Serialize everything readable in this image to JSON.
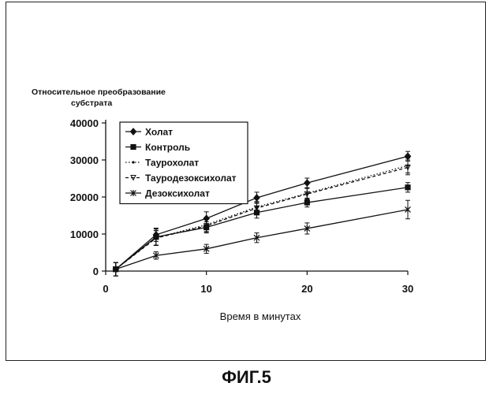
{
  "figure": {
    "caption": "ФИГ.5"
  },
  "chart_data": {
    "type": "line",
    "title": "",
    "ylabel_lines": [
      "Относительное преобразование",
      "субстрата"
    ],
    "xlabel": "Время в минутах",
    "xlim": [
      0,
      30
    ],
    "ylim": [
      0,
      40000
    ],
    "xticks": [
      0,
      10,
      20,
      30
    ],
    "yticks": [
      0,
      10000,
      20000,
      30000,
      40000
    ],
    "ytick_labels": [
      "0",
      "10000",
      "20000",
      "30000",
      "40000"
    ],
    "grid": false,
    "legend_position": "top-left",
    "x": [
      1,
      5,
      10,
      15,
      20,
      30
    ],
    "series": [
      {
        "name": "Холат",
        "marker": "diamond",
        "dash": "solid",
        "values": [
          500,
          9800,
          14200,
          19800,
          23800,
          31000
        ],
        "errors": [
          1800,
          1800,
          1800,
          1500,
          1300,
          1300
        ]
      },
      {
        "name": "Контроль",
        "marker": "square",
        "dash": "solid",
        "values": [
          500,
          9200,
          11800,
          15800,
          18500,
          22600
        ],
        "errors": [
          1800,
          2200,
          1500,
          1500,
          1200,
          1300
        ]
      },
      {
        "name": "Таурохолат",
        "marker": "dot",
        "dash": "dotted",
        "values": [
          500,
          9000,
          12500,
          17300,
          21000,
          28500
        ],
        "errors": [
          1800,
          2000,
          1800,
          1500,
          1500,
          2000
        ]
      },
      {
        "name": "Тауродезоксихолат",
        "marker": "triangle",
        "dash": "dashed",
        "values": [
          500,
          8900,
          12200,
          17000,
          20800,
          28000
        ],
        "errors": [
          1800,
          2000,
          1800,
          1500,
          1500,
          2000
        ]
      },
      {
        "name": "Дезоксихолат",
        "marker": "star",
        "dash": "solid",
        "values": [
          500,
          4200,
          6000,
          9000,
          11500,
          16600
        ],
        "errors": [
          1800,
          1000,
          1200,
          1300,
          1500,
          2500
        ]
      }
    ]
  }
}
